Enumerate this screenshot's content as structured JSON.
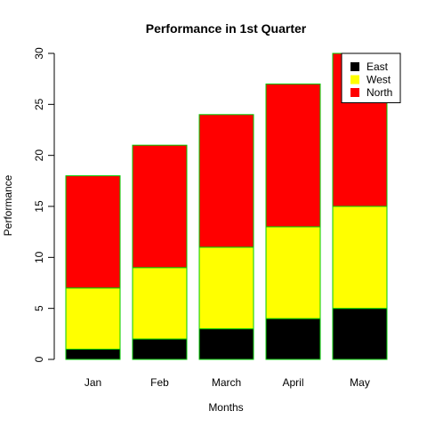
{
  "chart_data": {
    "type": "bar",
    "stacked": true,
    "title": "Performance in 1st Quarter",
    "xlabel": "Months",
    "ylabel": "Performance",
    "categories": [
      "Jan",
      "Feb",
      "March",
      "April",
      "May"
    ],
    "series": [
      {
        "name": "East",
        "color": "#000000",
        "values": [
          1,
          2,
          3,
          4,
          5
        ]
      },
      {
        "name": "West",
        "color": "#ffff00",
        "values": [
          6,
          7,
          8,
          9,
          10
        ]
      },
      {
        "name": "North",
        "color": "#ff0000",
        "values": [
          11,
          12,
          13,
          14,
          15
        ]
      }
    ],
    "ylim": [
      0,
      30
    ],
    "yticks": [
      0,
      5,
      10,
      15,
      20,
      25,
      30
    ],
    "bar_border_color": "#00cc00",
    "grid": false,
    "legend_position": "top-right"
  }
}
